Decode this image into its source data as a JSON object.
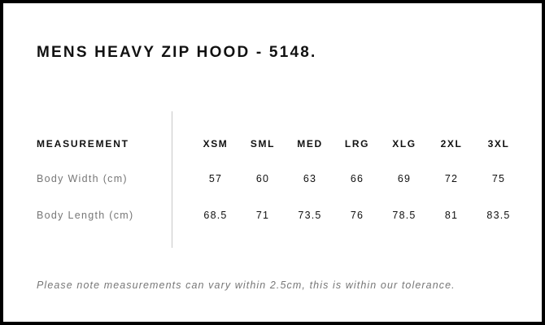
{
  "title": "MENS HEAVY ZIP HOOD - 5148.",
  "table": {
    "header": "MEASUREMENT",
    "sizes": [
      "XSM",
      "SML",
      "MED",
      "LRG",
      "XLG",
      "2XL",
      "3XL"
    ],
    "rows": [
      {
        "label": "Body Width (cm)",
        "values": [
          "57",
          "60",
          "63",
          "66",
          "69",
          "72",
          "75"
        ]
      },
      {
        "label": "Body Length (cm)",
        "values": [
          "68.5",
          "71",
          "73.5",
          "76",
          "78.5",
          "81",
          "83.5"
        ]
      }
    ]
  },
  "note": "Please note measurements can vary within 2.5cm, this is within our tolerance."
}
